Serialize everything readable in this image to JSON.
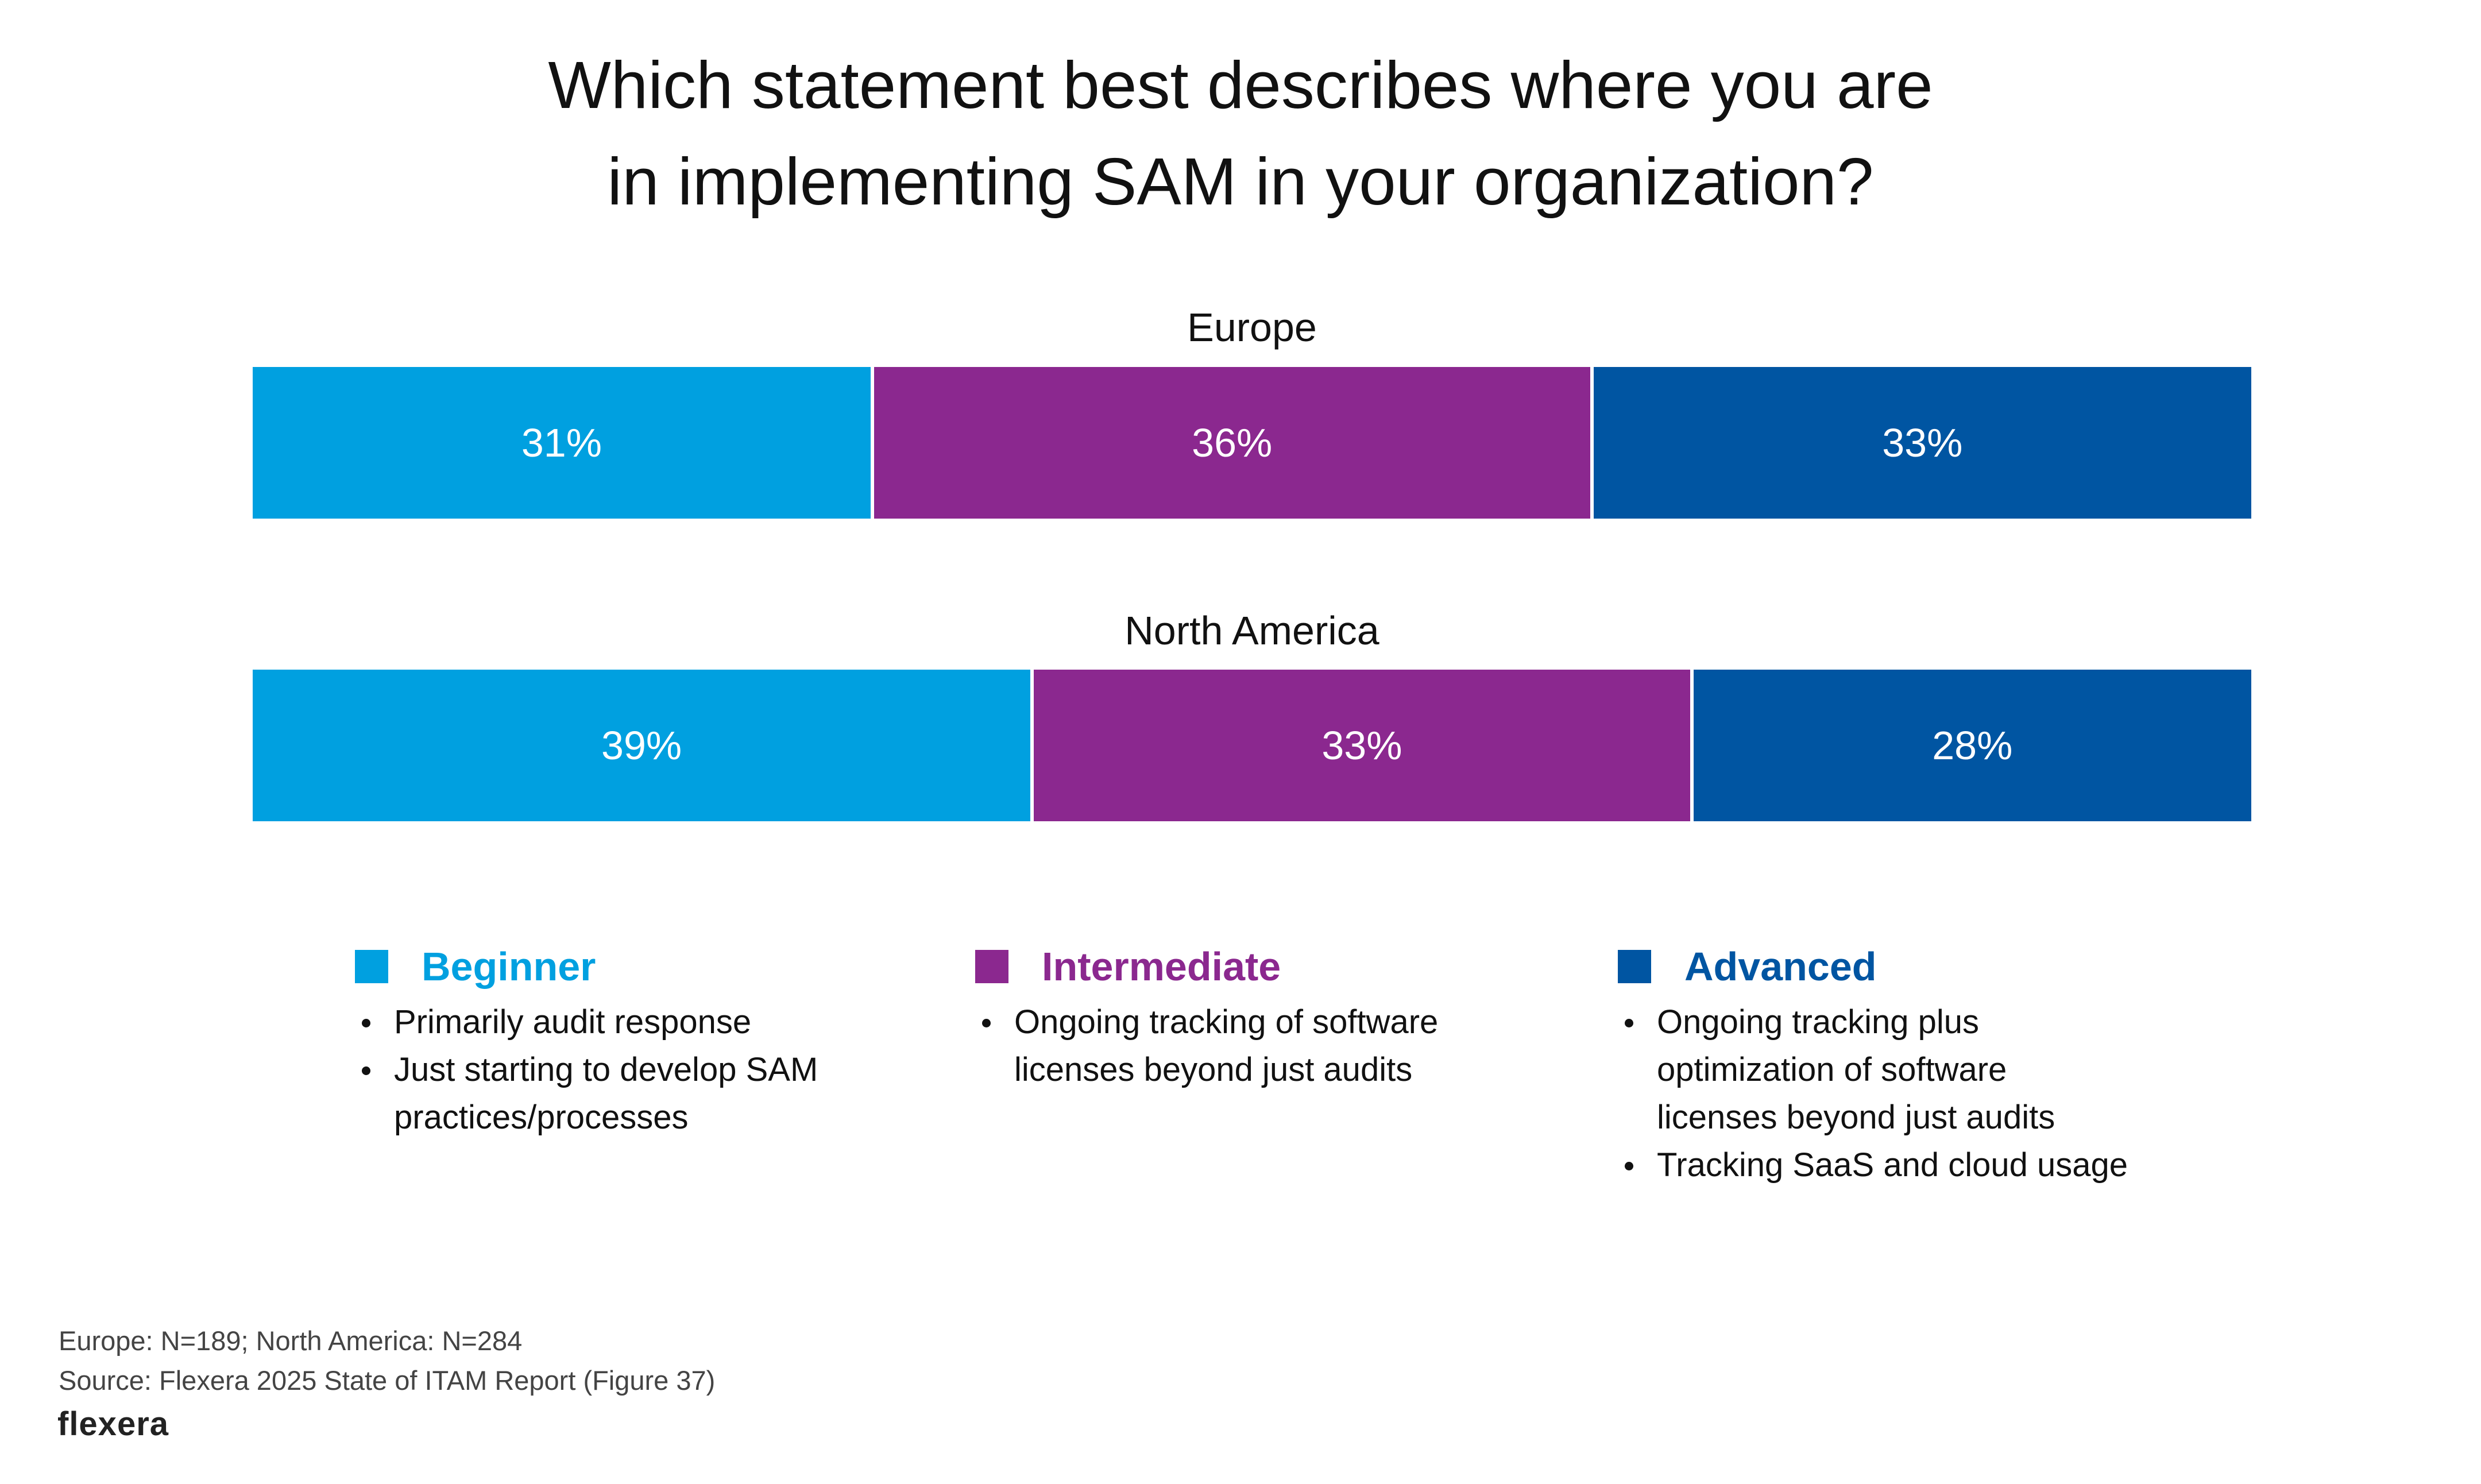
{
  "chart_data": {
    "type": "bar",
    "orientation": "horizontal",
    "stacked": true,
    "title_lines": [
      "Which statement best describes where you are",
      "in implementing SAM in your organization?"
    ],
    "categories": [
      "Europe",
      "North America"
    ],
    "series": [
      {
        "name": "Beginner",
        "color": "#00A0E0",
        "values": [
          31,
          39
        ],
        "labels": [
          "31%",
          "39%"
        ]
      },
      {
        "name": "Intermediate",
        "color": "#8B288F",
        "values": [
          36,
          33
        ],
        "labels": [
          "36%",
          "33%"
        ]
      },
      {
        "name": "Advanced",
        "color": "#0055A2",
        "values": [
          33,
          28
        ],
        "labels": [
          "33%",
          "28%"
        ]
      }
    ],
    "xlim": [
      0,
      100
    ],
    "xlabel": "",
    "ylabel": "",
    "grid": false,
    "legend_position": "bottom"
  },
  "legend": [
    {
      "name": "Beginner",
      "color": "#00A0E0",
      "bullets": [
        [
          "Primarily audit response"
        ],
        [
          "Just starting to develop SAM",
          "practices/processes"
        ]
      ]
    },
    {
      "name": "Intermediate",
      "color": "#8B288F",
      "bullets": [
        [
          "Ongoing tracking of software",
          "licenses beyond just audits"
        ]
      ]
    },
    {
      "name": "Advanced",
      "color": "#0055A2",
      "bullets": [
        [
          "Ongoing tracking plus",
          "optimization of software",
          "licenses beyond just audits"
        ],
        [
          "Tracking SaaS and cloud usage"
        ]
      ]
    }
  ],
  "footnotes": {
    "sample": "Europe: N=189; North America: N=284",
    "source": "Source: Flexera 2025 State of ITAM Report (Figure 37)"
  },
  "logo": {
    "text": "flexera"
  }
}
